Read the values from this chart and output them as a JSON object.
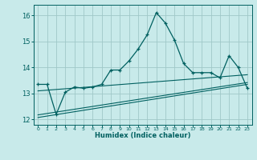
{
  "xlabel": "Humidex (Indice chaleur)",
  "background_color": "#c8eaea",
  "grid_color": "#a0c8c8",
  "line_color": "#006060",
  "xlim": [
    -0.5,
    23.5
  ],
  "ylim": [
    11.8,
    16.4
  ],
  "yticks": [
    12,
    13,
    14,
    15,
    16
  ],
  "xticks": [
    0,
    1,
    2,
    3,
    4,
    5,
    6,
    7,
    8,
    9,
    10,
    11,
    12,
    13,
    14,
    15,
    16,
    17,
    18,
    19,
    20,
    21,
    22,
    23
  ],
  "main_x": [
    0,
    1,
    2,
    3,
    4,
    5,
    6,
    7,
    8,
    9,
    10,
    11,
    12,
    13,
    14,
    15,
    16,
    17,
    18,
    19,
    20,
    21,
    22,
    23
  ],
  "main_y": [
    13.35,
    13.35,
    12.2,
    13.05,
    13.25,
    13.2,
    13.25,
    13.35,
    13.9,
    13.9,
    14.25,
    14.7,
    15.25,
    16.1,
    15.7,
    15.05,
    14.15,
    13.8,
    13.8,
    13.8,
    13.6,
    14.45,
    14.0,
    13.2
  ],
  "line1_x": [
    0,
    23
  ],
  "line1_y": [
    13.1,
    13.72
  ],
  "line2_x": [
    0,
    23
  ],
  "line2_y": [
    12.08,
    13.35
  ],
  "line3_x": [
    0,
    23
  ],
  "line3_y": [
    12.18,
    13.42
  ]
}
